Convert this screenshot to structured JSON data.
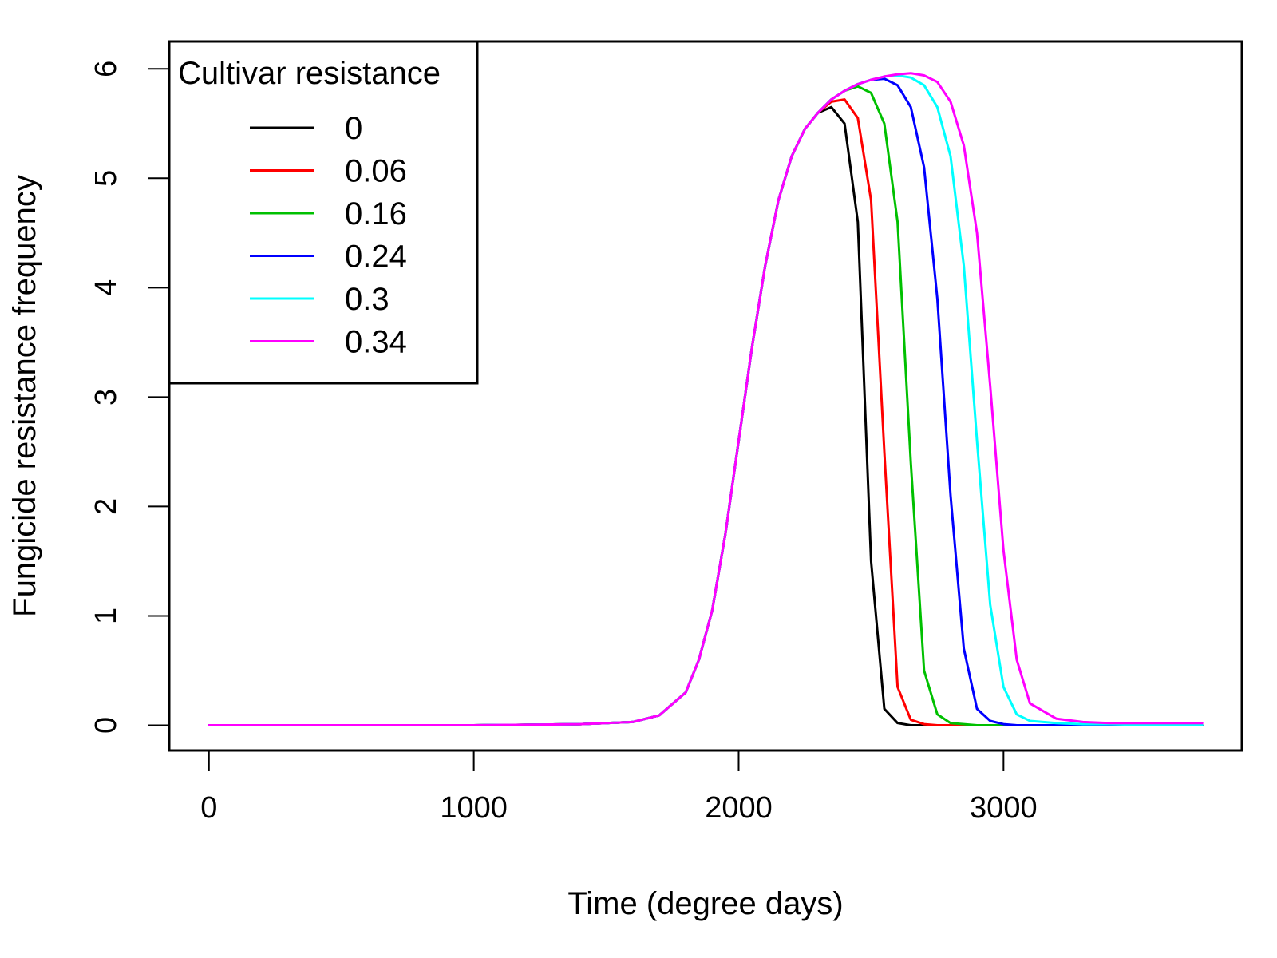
{
  "chart_data": {
    "type": "line",
    "title": "",
    "xlabel": "Time (degree days)",
    "ylabel": "Fungicide resistance frequency",
    "xlim": [
      -150,
      3900
    ],
    "ylim": [
      -0.23,
      6.25
    ],
    "x_ticks": [
      0,
      1000,
      2000,
      3000
    ],
    "y_ticks": [
      0,
      1,
      2,
      3,
      4,
      5,
      6
    ],
    "grid": false,
    "legend": {
      "title": "Cultivar resistance",
      "position": "top-left"
    },
    "x": [
      0,
      500,
      1000,
      1400,
      1600,
      1700,
      1800,
      1850,
      1900,
      1950,
      2000,
      2050,
      2100,
      2150,
      2200,
      2250,
      2300,
      2350,
      2400,
      2450,
      2500,
      2550,
      2600,
      2650,
      2700,
      2750,
      2800,
      2850,
      2900,
      2950,
      3000,
      3050,
      3100,
      3200,
      3300,
      3400,
      3600,
      3750
    ],
    "series": [
      {
        "name": "0",
        "color": "#000000",
        "values": [
          0,
          0,
          0,
          0.01,
          0.03,
          0.09,
          0.3,
          0.6,
          1.05,
          1.75,
          2.6,
          3.45,
          4.2,
          4.8,
          5.2,
          5.45,
          5.6,
          5.65,
          5.5,
          4.6,
          1.5,
          0.15,
          0.02,
          0,
          0,
          0,
          0,
          0,
          0,
          0,
          0,
          0,
          0,
          0,
          0,
          0,
          0,
          0
        ]
      },
      {
        "name": "0.06",
        "color": "#ff0000",
        "values": [
          0,
          0,
          0,
          0.01,
          0.03,
          0.09,
          0.3,
          0.6,
          1.05,
          1.75,
          2.6,
          3.45,
          4.2,
          4.8,
          5.2,
          5.45,
          5.6,
          5.7,
          5.72,
          5.55,
          4.8,
          2.5,
          0.35,
          0.05,
          0.01,
          0,
          0,
          0,
          0,
          0,
          0,
          0,
          0,
          0,
          0,
          0,
          0,
          0
        ]
      },
      {
        "name": "0.16",
        "color": "#00c000",
        "values": [
          0,
          0,
          0,
          0.01,
          0.03,
          0.09,
          0.3,
          0.6,
          1.05,
          1.75,
          2.6,
          3.45,
          4.2,
          4.8,
          5.2,
          5.45,
          5.6,
          5.72,
          5.8,
          5.84,
          5.78,
          5.5,
          4.6,
          2.4,
          0.5,
          0.1,
          0.02,
          0.01,
          0,
          0,
          0,
          0,
          0,
          0,
          0,
          0,
          0,
          0
        ]
      },
      {
        "name": "0.24",
        "color": "#0000ff",
        "values": [
          0,
          0,
          0,
          0.01,
          0.03,
          0.09,
          0.3,
          0.6,
          1.05,
          1.75,
          2.6,
          3.45,
          4.2,
          4.8,
          5.2,
          5.45,
          5.6,
          5.72,
          5.8,
          5.86,
          5.9,
          5.91,
          5.85,
          5.65,
          5.1,
          3.9,
          2.1,
          0.7,
          0.15,
          0.04,
          0.01,
          0,
          0,
          0,
          0,
          0,
          0,
          0
        ]
      },
      {
        "name": "0.3",
        "color": "#00ffff",
        "values": [
          0,
          0,
          0,
          0.01,
          0.03,
          0.09,
          0.3,
          0.6,
          1.05,
          1.75,
          2.6,
          3.45,
          4.2,
          4.8,
          5.2,
          5.45,
          5.6,
          5.72,
          5.8,
          5.86,
          5.9,
          5.93,
          5.94,
          5.92,
          5.85,
          5.65,
          5.2,
          4.2,
          2.6,
          1.1,
          0.35,
          0.1,
          0.04,
          0.02,
          0.01,
          0.01,
          0,
          0
        ]
      },
      {
        "name": "0.34",
        "color": "#ff00ff",
        "values": [
          0,
          0,
          0,
          0.01,
          0.03,
          0.09,
          0.3,
          0.6,
          1.05,
          1.75,
          2.6,
          3.45,
          4.2,
          4.8,
          5.2,
          5.45,
          5.6,
          5.72,
          5.8,
          5.86,
          5.9,
          5.93,
          5.95,
          5.96,
          5.94,
          5.88,
          5.7,
          5.3,
          4.5,
          3.1,
          1.6,
          0.6,
          0.2,
          0.06,
          0.03,
          0.02,
          0.02,
          0.02
        ]
      }
    ]
  }
}
